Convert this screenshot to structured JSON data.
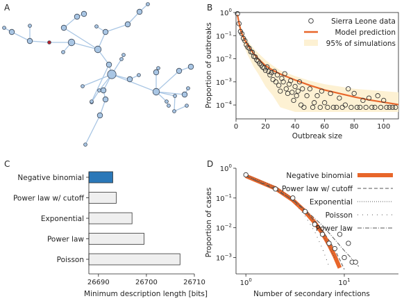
{
  "panels": {
    "a": {
      "label": "A"
    },
    "b": {
      "label": "B"
    },
    "c": {
      "label": "C"
    },
    "d": {
      "label": "D"
    }
  },
  "network": {
    "node_color": "#a9c6e4",
    "index_case_color": "#b8202a",
    "edge_color": "#a9c6e4",
    "nodes": [
      {
        "id": "n1",
        "size": 1
      },
      {
        "id": "n2",
        "size": 2
      },
      {
        "id": "n3",
        "size": 2
      },
      {
        "id": "n4",
        "size": 1
      },
      {
        "id": "n5",
        "size": 1,
        "index_case": true
      },
      {
        "id": "n6",
        "size": 3
      },
      {
        "id": "n7",
        "size": 1
      },
      {
        "id": "n8",
        "size": 2
      },
      {
        "id": "n9",
        "size": 2
      },
      {
        "id": "n10",
        "size": 2
      },
      {
        "id": "n11",
        "size": 3
      },
      {
        "id": "n12",
        "size": 2
      },
      {
        "id": "n13",
        "size": 1
      },
      {
        "id": "n14",
        "size": 2
      },
      {
        "id": "n15",
        "size": 2
      },
      {
        "id": "n16",
        "size": 1
      },
      {
        "id": "n17",
        "size": 1
      },
      {
        "id": "n18",
        "size": 1
      },
      {
        "id": "n19",
        "size": 1
      },
      {
        "id": "n20",
        "size": 1
      },
      {
        "id": "n21",
        "size": 2
      },
      {
        "id": "n22",
        "size": 4
      },
      {
        "id": "n23",
        "size": 1
      },
      {
        "id": "n24",
        "size": 1
      },
      {
        "id": "n25",
        "size": 2
      },
      {
        "id": "n26",
        "size": 1
      },
      {
        "id": "n27",
        "size": 2
      },
      {
        "id": "n28",
        "size": 2
      },
      {
        "id": "n29",
        "size": 2
      },
      {
        "id": "n30",
        "size": 3
      },
      {
        "id": "n31",
        "size": 2
      },
      {
        "id": "n32",
        "size": 2
      },
      {
        "id": "n33",
        "size": 2
      },
      {
        "id": "n34",
        "size": 1
      },
      {
        "id": "n35",
        "size": 2
      },
      {
        "id": "n36",
        "size": 1
      },
      {
        "id": "n37",
        "size": 1
      },
      {
        "id": "n38",
        "size": 1
      },
      {
        "id": "n39",
        "size": 1
      },
      {
        "id": "n40",
        "size": 1
      },
      {
        "id": "n41",
        "size": 1
      },
      {
        "id": "n42",
        "size": 1
      }
    ],
    "edges": [
      [
        "n1",
        "n2"
      ],
      [
        "n2",
        "n3"
      ],
      [
        "n3",
        "n4"
      ],
      [
        "n3",
        "n5"
      ],
      [
        "n5",
        "n6"
      ],
      [
        "n6",
        "n7"
      ],
      [
        "n6",
        "n11"
      ],
      [
        "n11",
        "n8"
      ],
      [
        "n8",
        "n9"
      ],
      [
        "n9",
        "n10"
      ],
      [
        "n11",
        "n12"
      ],
      [
        "n12",
        "n14"
      ],
      [
        "n14",
        "n15"
      ],
      [
        "n15",
        "n16"
      ],
      [
        "n12",
        "n13"
      ],
      [
        "n11",
        "n21"
      ],
      [
        "n21",
        "n20"
      ],
      [
        "n21",
        "n22"
      ],
      [
        "n22",
        "n17"
      ],
      [
        "n22",
        "n18"
      ],
      [
        "n18",
        "n19"
      ],
      [
        "n22",
        "n23"
      ],
      [
        "n23",
        "n24"
      ],
      [
        "n22",
        "n25"
      ],
      [
        "n25",
        "n26"
      ],
      [
        "n22",
        "n27"
      ],
      [
        "n27",
        "n28"
      ],
      [
        "n28",
        "n29"
      ],
      [
        "n29",
        "n42"
      ],
      [
        "n22",
        "n30"
      ],
      [
        "n30",
        "n31"
      ],
      [
        "n31",
        "n32"
      ],
      [
        "n30",
        "n33"
      ],
      [
        "n33",
        "n34"
      ],
      [
        "n30",
        "n35"
      ],
      [
        "n35",
        "n36"
      ],
      [
        "n30",
        "n37"
      ],
      [
        "n37",
        "n38"
      ],
      [
        "n30",
        "n39"
      ],
      [
        "n39",
        "n40"
      ],
      [
        "n40",
        "n41"
      ]
    ]
  },
  "chart_data": [
    {
      "panel": "B",
      "type": "scatter",
      "xlabel": "Outbreak size",
      "ylabel": "Proportion of outbreaks",
      "xlim": [
        0,
        110
      ],
      "ylim_exp": [
        -4.6,
        0
      ],
      "y_scale": "log",
      "xticks": [
        0,
        20,
        40,
        60,
        80,
        100
      ],
      "yticks": [
        {
          "exp": 0,
          "label": "10",
          "sup": "0"
        },
        {
          "exp": -1,
          "label": "10",
          "sup": "−1"
        },
        {
          "exp": -2,
          "label": "10",
          "sup": "−2"
        },
        {
          "exp": -3,
          "label": "10",
          "sup": "−3"
        },
        {
          "exp": -4,
          "label": "10",
          "sup": "−4"
        }
      ],
      "legend": {
        "position": "top-right",
        "entries": [
          "Sierra Leone data",
          "Model prediction",
          "95% of simulations"
        ]
      },
      "colors": {
        "model": "#e8662a",
        "band": "#fdf1d3",
        "points": "#333333"
      },
      "series": [
        {
          "name": "Sierra Leone data",
          "kind": "points",
          "x": [
            1,
            2,
            3,
            4,
            5,
            6,
            7,
            8,
            9,
            10,
            11,
            12,
            13,
            14,
            15,
            16,
            17,
            18,
            19,
            20,
            21,
            22,
            23,
            24,
            25,
            26,
            27,
            28,
            29,
            30,
            31,
            32,
            33,
            34,
            35,
            36,
            37,
            38,
            39,
            40,
            41,
            42,
            43,
            44,
            45,
            46,
            48,
            50,
            52,
            53,
            55,
            57,
            58,
            60,
            62,
            64,
            66,
            68,
            70,
            72,
            74,
            76,
            78,
            80,
            82,
            84,
            86,
            88,
            90,
            92,
            94,
            96,
            98,
            100,
            102,
            104,
            106,
            108
          ],
          "y_exp": [
            -0.05,
            -0.48,
            -0.82,
            -0.92,
            -1.12,
            -1.22,
            -1.4,
            -1.5,
            -1.55,
            -1.7,
            -1.72,
            -1.9,
            -1.92,
            -2.05,
            -2.1,
            -2.2,
            -2.28,
            -2.36,
            -2.4,
            -2.5,
            -2.35,
            -2.55,
            -2.7,
            -2.6,
            -2.9,
            -2.55,
            -3.0,
            -2.7,
            -3.15,
            -3.4,
            -2.85,
            -3.0,
            -2.65,
            -3.3,
            -3.5,
            -3.1,
            -2.95,
            -3.45,
            -3.8,
            -3.2,
            -3.6,
            -3.4,
            -3.0,
            -4.0,
            -3.3,
            -4.1,
            -3.6,
            -3.3,
            -4.1,
            -3.9,
            -3.6,
            -4.1,
            -3.4,
            -3.9,
            -4.1,
            -3.5,
            -4.1,
            -4.1,
            -3.7,
            -4.1,
            -4.0,
            -3.3,
            -4.1,
            -3.5,
            -4.1,
            -4.1,
            -3.8,
            -4.1,
            -3.7,
            -4.1,
            -4.1,
            -3.6,
            -4.1,
            -3.8,
            -4.1,
            -4.1,
            -4.1,
            -4.1
          ]
        },
        {
          "name": "Model prediction",
          "kind": "line",
          "x": [
            1,
            2,
            3,
            4,
            6,
            8,
            10,
            12,
            15,
            20,
            25,
            30,
            40,
            50,
            60,
            70,
            80,
            90,
            100,
            110
          ],
          "y_exp": [
            -0.1,
            -0.45,
            -0.72,
            -0.92,
            -1.2,
            -1.42,
            -1.6,
            -1.78,
            -2.0,
            -2.3,
            -2.5,
            -2.66,
            -2.92,
            -3.15,
            -3.35,
            -3.5,
            -3.65,
            -3.78,
            -3.88,
            -3.98
          ]
        },
        {
          "name": "95% of simulations",
          "kind": "band",
          "x": [
            1,
            2,
            3,
            4,
            6,
            8,
            10,
            12,
            15,
            20,
            25,
            30,
            40,
            50,
            60,
            70,
            80,
            90,
            100,
            110
          ],
          "lo_exp": [
            -0.2,
            -0.65,
            -0.95,
            -1.2,
            -1.55,
            -1.85,
            -2.1,
            -2.35,
            -2.65,
            -3.2,
            -3.6,
            -4.1,
            -4.3,
            -4.3,
            -4.3,
            -4.3,
            -4.3,
            -4.3,
            -4.3,
            -4.3
          ],
          "hi_exp": [
            0,
            -0.3,
            -0.55,
            -0.75,
            -1.0,
            -1.2,
            -1.4,
            -1.55,
            -1.75,
            -2.05,
            -2.3,
            -2.5,
            -2.75,
            -2.95,
            -3.1,
            -3.2,
            -3.3,
            -3.35,
            -3.4,
            -3.45
          ]
        }
      ]
    },
    {
      "panel": "C",
      "type": "bar",
      "orientation": "horizontal",
      "xlabel": "Minimum description length [bits]",
      "xlim": [
        26688,
        26710
      ],
      "xticks": [
        26690,
        26700,
        26710
      ],
      "categories": [
        "Negative binomial",
        "Power law w/ cutoff",
        "Exponential",
        "Power law",
        "Poisson"
      ],
      "values": [
        26693.0,
        26693.7,
        26697.0,
        26699.5,
        26707.0
      ],
      "colors": {
        "best": "#2a78b8",
        "other": "#efefef"
      }
    },
    {
      "panel": "D",
      "type": "scatter",
      "xlabel": "Number of secondary infections",
      "ylabel": "Proportion of cases",
      "x_scale": "log",
      "y_scale": "log",
      "xlim_exp": [
        -0.1,
        1.55
      ],
      "ylim_exp": [
        -3.55,
        0
      ],
      "xticks": [
        {
          "exp": 0,
          "label": "10",
          "sup": "0"
        },
        {
          "exp": 1,
          "label": "10",
          "sup": "1"
        }
      ],
      "yticks": [
        {
          "exp": 0,
          "label": "10",
          "sup": "0"
        },
        {
          "exp": -1,
          "label": "10",
          "sup": "−1"
        },
        {
          "exp": -2,
          "label": "10",
          "sup": "−2"
        },
        {
          "exp": -3,
          "label": "10",
          "sup": "−3"
        }
      ],
      "legend": {
        "position": "top-right",
        "entries": [
          "Negative binomial",
          "Power law w/ cutoff",
          "Exponential",
          "Poisson",
          "Power law"
        ]
      },
      "colors": {
        "negbin": "#e8662a",
        "others": "#555555",
        "points": "#333333"
      },
      "series": [
        {
          "name": "Data",
          "kind": "points",
          "x": [
            1,
            2,
            3,
            4,
            5,
            6,
            7,
            8,
            9,
            10,
            11,
            12,
            13
          ],
          "y": [
            0.6,
            0.2,
            0.1,
            0.035,
            0.013,
            0.006,
            0.003,
            0.002,
            0.006,
            0.001,
            0.003,
            0.0007,
            0.0007
          ]
        },
        {
          "name": "Negative binomial",
          "kind": "line",
          "style": "thick",
          "x": [
            1,
            2,
            3,
            4,
            5,
            6,
            7,
            8,
            9
          ],
          "y": [
            0.55,
            0.21,
            0.085,
            0.035,
            0.015,
            0.0065,
            0.0027,
            0.0011,
            0.00045
          ]
        },
        {
          "name": "Power law w/ cutoff",
          "kind": "line",
          "style": "dashed",
          "x": [
            1,
            2,
            3,
            4,
            5,
            6,
            7,
            8,
            9,
            10
          ],
          "y": [
            0.55,
            0.2,
            0.085,
            0.037,
            0.017,
            0.008,
            0.0038,
            0.0018,
            0.00085,
            0.0004
          ]
        },
        {
          "name": "Exponential",
          "kind": "line",
          "style": "dotted",
          "x": [
            1,
            2,
            3,
            4,
            5,
            6,
            7,
            8
          ],
          "y": [
            0.6,
            0.24,
            0.095,
            0.038,
            0.015,
            0.006,
            0.0024,
            0.00095
          ]
        },
        {
          "name": "Poisson",
          "kind": "line",
          "style": "dashdot-dense",
          "x": [
            1,
            2,
            3,
            4,
            5,
            6,
            7
          ],
          "y": [
            0.55,
            0.22,
            0.08,
            0.025,
            0.0075,
            0.002,
            0.0005
          ]
        },
        {
          "name": "Power law",
          "kind": "line",
          "style": "dashdot",
          "x": [
            1,
            2,
            3,
            4,
            6,
            8,
            10,
            12,
            14
          ],
          "y": [
            0.55,
            0.19,
            0.085,
            0.04,
            0.012,
            0.004,
            0.0017,
            0.0009,
            0.0005
          ]
        }
      ]
    }
  ]
}
